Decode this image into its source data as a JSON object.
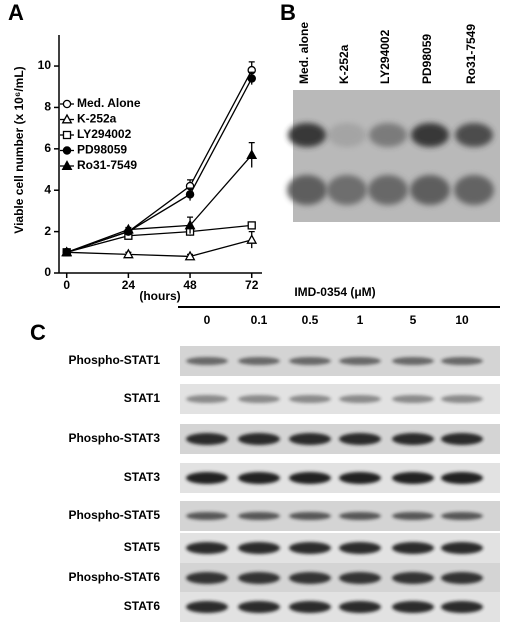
{
  "chart_data": {
    "type": "line",
    "panel": "A",
    "ylabel": "Viable cell number (x 10⁶/mL)",
    "xlabel": "(hours)",
    "x": [
      0,
      24,
      48,
      72
    ],
    "xlim": [
      -3,
      76
    ],
    "xticks": [
      0,
      24,
      48,
      72
    ],
    "ylim": [
      0,
      11.5
    ],
    "yticks": [
      0,
      2,
      4,
      6,
      8,
      10
    ],
    "series": [
      {
        "name": "Med. Alone",
        "color": "#000000",
        "marker": "circle",
        "filled": false,
        "values": [
          1,
          2.0,
          4.2,
          9.8
        ],
        "errors": [
          0,
          0.1,
          0.3,
          0.4
        ]
      },
      {
        "name": "K-252a",
        "color": "#000000",
        "marker": "triangle",
        "filled": false,
        "values": [
          1,
          0.9,
          0.8,
          1.6
        ],
        "errors": [
          0,
          0.1,
          0.1,
          0.4
        ]
      },
      {
        "name": "LY294002",
        "color": "#000000",
        "marker": "square",
        "filled": false,
        "values": [
          1,
          1.8,
          2.0,
          2.3
        ],
        "errors": [
          0,
          0.1,
          0.2,
          0.1
        ]
      },
      {
        "name": "PD98059",
        "color": "#000000",
        "marker": "circle",
        "filled": true,
        "values": [
          1,
          2.0,
          3.8,
          9.4
        ],
        "errors": [
          0,
          0.1,
          0.3,
          0.3
        ]
      },
      {
        "name": "Ro31-7549",
        "color": "#000000",
        "marker": "triangle",
        "filled": true,
        "values": [
          1,
          2.1,
          2.3,
          5.7
        ],
        "errors": [
          0,
          0.1,
          0.4,
          0.6
        ]
      }
    ]
  },
  "panel_b": {
    "label": "B",
    "lanes": [
      "Med. alone",
      "K-252a",
      "LY294002",
      "PD98059",
      "Ro31-7549"
    ]
  },
  "panel_c": {
    "label": "C",
    "title": "IMD-0354 (μM)",
    "doses": [
      "0",
      "0.1",
      "0.5",
      "1",
      "5",
      "10"
    ],
    "rows": [
      "Phospho-STAT1",
      "STAT1",
      "Phospho-STAT3",
      "STAT3",
      "Phospho-STAT5",
      "STAT5",
      "Phospho-STAT6",
      "STAT6"
    ]
  }
}
